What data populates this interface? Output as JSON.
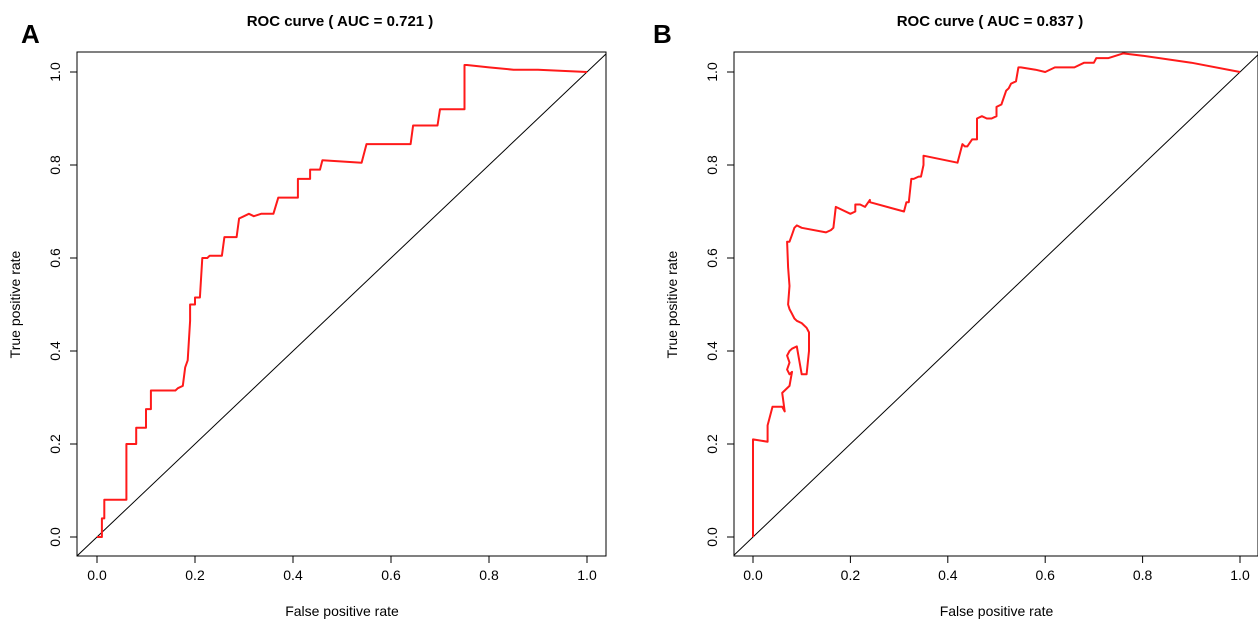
{
  "panels": [
    {
      "letter": "A"
    },
    {
      "letter": "B"
    }
  ],
  "chart_data": [
    {
      "type": "line",
      "title": "ROC curve ( AUC =  0.721 )",
      "xlabel": "False positive rate",
      "ylabel": "True positive rate",
      "xlim": [
        0.0,
        1.0
      ],
      "ylim": [
        0.0,
        1.0
      ],
      "x_ticks": [
        "0.0",
        "0.2",
        "0.4",
        "0.6",
        "0.8",
        "1.0"
      ],
      "y_ticks": [
        "0.0",
        "0.2",
        "0.4",
        "0.6",
        "0.8",
        "1.0"
      ],
      "grid": false,
      "colors": {
        "curve": "#ff1a1a",
        "diagonal": "#000000"
      },
      "series": [
        {
          "x": [
            0.0,
            0.01,
            0.01,
            0.015,
            0.015,
            0.06,
            0.06,
            0.08,
            0.08,
            0.1,
            0.1,
            0.11,
            0.11,
            0.16,
            0.165,
            0.175,
            0.18,
            0.185,
            0.185,
            0.19,
            0.19,
            0.2,
            0.2,
            0.21,
            0.215,
            0.225,
            0.23,
            0.235,
            0.24,
            0.255,
            0.26,
            0.26,
            0.285,
            0.29,
            0.3,
            0.31,
            0.32,
            0.335,
            0.36,
            0.37,
            0.37,
            0.41,
            0.41,
            0.435,
            0.435,
            0.455,
            0.46,
            0.54,
            0.55,
            0.555,
            0.57,
            0.64,
            0.645,
            0.695,
            0.7,
            0.72,
            0.75,
            0.75,
            0.755,
            0.8,
            0.85,
            0.9,
            1.0
          ],
          "y": [
            0.0,
            0.0,
            0.04,
            0.04,
            0.08,
            0.08,
            0.2,
            0.2,
            0.235,
            0.235,
            0.275,
            0.275,
            0.315,
            0.315,
            0.32,
            0.325,
            0.365,
            0.38,
            0.38,
            0.465,
            0.5,
            0.5,
            0.515,
            0.515,
            0.6,
            0.6,
            0.605,
            0.605,
            0.605,
            0.605,
            0.645,
            0.645,
            0.645,
            0.685,
            0.69,
            0.695,
            0.69,
            0.695,
            0.695,
            0.73,
            0.73,
            0.73,
            0.77,
            0.77,
            0.79,
            0.79,
            0.81,
            0.805,
            0.845,
            0.845,
            0.845,
            0.845,
            0.885,
            0.885,
            0.92,
            0.92,
            0.92,
            1.015,
            1.015,
            1.01,
            1.005,
            1.005,
            1.0
          ]
        }
      ]
    },
    {
      "type": "line",
      "title": "ROC curve ( AUC =  0.837 )",
      "xlabel": "False positive rate",
      "ylabel": "True positive rate",
      "xlim": [
        0.0,
        1.0
      ],
      "ylim": [
        0.0,
        1.0
      ],
      "x_ticks": [
        "0.0",
        "0.2",
        "0.4",
        "0.6",
        "0.8",
        "1.0"
      ],
      "y_ticks": [
        "0.0",
        "0.2",
        "0.4",
        "0.6",
        "0.8",
        "1.0"
      ],
      "grid": false,
      "colors": {
        "curve": "#ff1a1a",
        "diagonal": "#000000"
      },
      "series": [
        {
          "x": [
            0.0,
            0.0,
            0.03,
            0.03,
            0.04,
            0.06,
            0.065,
            0.06,
            0.075,
            0.08,
            0.075,
            0.07,
            0.075,
            0.07,
            0.075,
            0.08,
            0.09,
            0.1,
            0.11,
            0.115,
            0.115,
            0.11,
            0.1,
            0.09,
            0.085,
            0.08,
            0.075,
            0.072,
            0.075,
            0.072,
            0.07,
            0.075,
            0.08,
            0.085,
            0.09,
            0.1,
            0.15,
            0.16,
            0.165,
            0.17,
            0.2,
            0.21,
            0.21,
            0.22,
            0.23,
            0.24,
            0.24,
            0.31,
            0.315,
            0.32,
            0.325,
            0.33,
            0.34,
            0.345,
            0.35,
            0.35,
            0.42,
            0.43,
            0.435,
            0.44,
            0.45,
            0.46,
            0.46,
            0.47,
            0.48,
            0.49,
            0.5,
            0.5,
            0.51,
            0.52,
            0.525,
            0.53,
            0.54,
            0.545,
            0.55,
            0.58,
            0.6,
            0.62,
            0.64,
            0.66,
            0.68,
            0.7,
            0.705,
            0.71,
            0.73,
            0.76,
            0.8,
            0.9,
            1.0
          ],
          "y": [
            0.0,
            0.21,
            0.205,
            0.24,
            0.28,
            0.28,
            0.27,
            0.31,
            0.325,
            0.355,
            0.35,
            0.36,
            0.375,
            0.39,
            0.4,
            0.405,
            0.41,
            0.35,
            0.35,
            0.4,
            0.44,
            0.45,
            0.46,
            0.465,
            0.47,
            0.48,
            0.49,
            0.5,
            0.54,
            0.58,
            0.635,
            0.635,
            0.65,
            0.665,
            0.67,
            0.665,
            0.655,
            0.66,
            0.665,
            0.71,
            0.695,
            0.7,
            0.715,
            0.715,
            0.71,
            0.725,
            0.72,
            0.7,
            0.72,
            0.72,
            0.77,
            0.77,
            0.775,
            0.775,
            0.8,
            0.82,
            0.805,
            0.845,
            0.84,
            0.84,
            0.855,
            0.855,
            0.9,
            0.905,
            0.9,
            0.9,
            0.905,
            0.925,
            0.93,
            0.96,
            0.965,
            0.975,
            0.98,
            1.01,
            1.01,
            1.005,
            1.0,
            1.01,
            1.01,
            1.01,
            1.02,
            1.02,
            1.03,
            1.03,
            1.03,
            1.04,
            1.035,
            1.02,
            1.0
          ]
        }
      ]
    }
  ]
}
